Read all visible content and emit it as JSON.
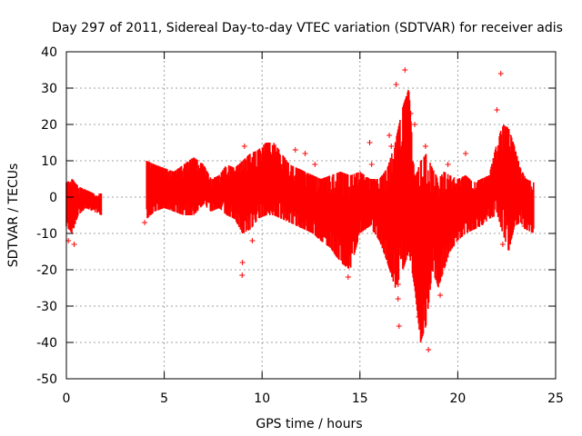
{
  "chart_data": {
    "type": "scatter",
    "title": "Day 297 of 2011, Sidereal Day-to-day VTEC variation (SDTVAR) for receiver adis",
    "xlabel": "GPS time / hours",
    "ylabel": "SDTVAR / TECUs",
    "xlim": [
      0,
      25
    ],
    "ylim": [
      -50,
      40
    ],
    "xticks": [
      0,
      5,
      10,
      15,
      20,
      25
    ],
    "yticks": [
      -50,
      -40,
      -30,
      -20,
      -10,
      0,
      10,
      20,
      30,
      40
    ],
    "grid": true,
    "color": "#ff0000",
    "envelope": {
      "x": [
        0.0,
        0.3,
        0.6,
        1.0,
        1.4,
        1.8,
        4.1,
        4.5,
        5.0,
        5.5,
        6.0,
        6.5,
        7.0,
        7.4,
        7.8,
        8.2,
        8.6,
        9.0,
        9.4,
        9.8,
        10.2,
        10.6,
        11.0,
        11.4,
        11.8,
        12.2,
        12.6,
        13.0,
        13.5,
        14.0,
        14.5,
        15.0,
        15.5,
        16.0,
        16.4,
        16.8,
        17.2,
        17.5,
        17.8,
        18.1,
        18.4,
        18.7,
        19.0,
        19.3,
        19.6,
        20.0,
        20.4,
        20.8,
        21.2,
        21.6,
        22.0,
        22.3,
        22.6,
        22.9,
        23.2,
        23.5,
        23.9
      ],
      "upper": [
        4,
        5,
        3,
        2,
        1,
        1,
        10,
        9,
        8,
        7,
        9,
        11,
        9,
        5,
        6,
        9,
        8,
        10,
        12,
        13,
        15,
        15,
        12,
        9,
        8,
        7,
        6,
        5,
        6,
        7,
        6,
        7,
        5,
        5,
        8,
        15,
        25,
        30,
        5,
        10,
        12,
        8,
        5,
        7,
        6,
        5,
        6,
        4,
        5,
        6,
        15,
        20,
        19,
        14,
        8,
        5,
        4
      ],
      "lower": [
        -8,
        -10,
        -5,
        -3,
        -4,
        -5,
        -6,
        -4,
        -3,
        -4,
        -5,
        -5,
        -2,
        -4,
        -3,
        -5,
        -6,
        -10,
        -9,
        -6,
        -5,
        -5,
        -6,
        -7,
        -8,
        -9,
        -10,
        -12,
        -14,
        -18,
        -20,
        -10,
        -8,
        -12,
        -18,
        -25,
        -20,
        -15,
        -25,
        -40,
        -35,
        -20,
        -25,
        -20,
        -15,
        -12,
        -10,
        -9,
        -8,
        -6,
        -5,
        -10,
        -15,
        -8,
        -7,
        -9,
        -10
      ]
    },
    "outliers": [
      {
        "x": 0.1,
        "y": -12
      },
      {
        "x": 0.4,
        "y": -13
      },
      {
        "x": 4.0,
        "y": -7
      },
      {
        "x": 8.98,
        "y": -21.5
      },
      {
        "x": 9.1,
        "y": 14
      },
      {
        "x": 9.0,
        "y": -18
      },
      {
        "x": 9.5,
        "y": -12
      },
      {
        "x": 11.7,
        "y": 13
      },
      {
        "x": 12.2,
        "y": 12
      },
      {
        "x": 12.7,
        "y": 9
      },
      {
        "x": 13.6,
        "y": -12
      },
      {
        "x": 14.4,
        "y": -22
      },
      {
        "x": 15.5,
        "y": 15
      },
      {
        "x": 15.6,
        "y": 9
      },
      {
        "x": 16.5,
        "y": 17
      },
      {
        "x": 16.6,
        "y": 14
      },
      {
        "x": 16.85,
        "y": 31
      },
      {
        "x": 16.95,
        "y": -24
      },
      {
        "x": 16.95,
        "y": -28
      },
      {
        "x": 17.0,
        "y": -35.5
      },
      {
        "x": 17.3,
        "y": 35
      },
      {
        "x": 17.6,
        "y": 23
      },
      {
        "x": 17.8,
        "y": 20
      },
      {
        "x": 18.0,
        "y": -33
      },
      {
        "x": 18.5,
        "y": -42
      },
      {
        "x": 18.35,
        "y": 14
      },
      {
        "x": 19.1,
        "y": -27
      },
      {
        "x": 19.5,
        "y": 9
      },
      {
        "x": 20.4,
        "y": 12
      },
      {
        "x": 22.2,
        "y": 34
      },
      {
        "x": 22.0,
        "y": 24
      },
      {
        "x": 22.6,
        "y": 17
      },
      {
        "x": 22.3,
        "y": -13
      },
      {
        "x": 23.4,
        "y": -8
      }
    ]
  }
}
